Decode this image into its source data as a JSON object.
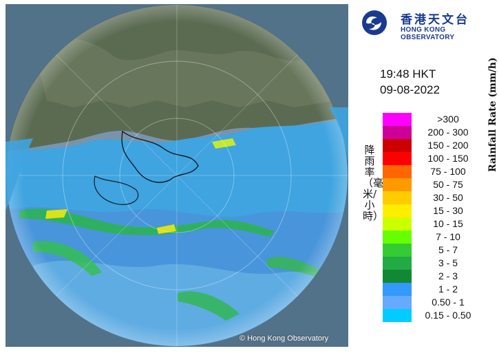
{
  "header": {
    "logo_cn": "香港天文台",
    "logo_en": "HONG KONG OBSERVATORY",
    "logo_icon": "hko-logo-icon"
  },
  "timestamp": {
    "time": "19:48 HKT",
    "date": "09-08-2022"
  },
  "legend": {
    "title_cn": "降雨率（毫米/小時）",
    "title_en": "Rainfall Rate (mm/h)",
    "items": [
      {
        "label": ">300",
        "color": "#ff00ff"
      },
      {
        "label": "200 - 300",
        "color": "#cc0099"
      },
      {
        "label": "150 - 200",
        "color": "#cc0000"
      },
      {
        "label": "100 - 150",
        "color": "#ff0000"
      },
      {
        "label": "75 - 100",
        "color": "#ff6600"
      },
      {
        "label": "50 - 75",
        "color": "#ff9900"
      },
      {
        "label": "30 - 50",
        "color": "#ffcc00"
      },
      {
        "label": "15 - 30",
        "color": "#ffee00"
      },
      {
        "label": "10 - 15",
        "color": "#ccff00"
      },
      {
        "label": "7 - 10",
        "color": "#66ff00"
      },
      {
        "label": "5 - 7",
        "color": "#33cc33"
      },
      {
        "label": "3 - 5",
        "color": "#22aa44"
      },
      {
        "label": "2 - 3",
        "color": "#118833"
      },
      {
        "label": "1 - 2",
        "color": "#3399ff"
      },
      {
        "label": "0.50 - 1",
        "color": "#66aaff"
      },
      {
        "label": "0.15 - 0.50",
        "color": "#00ccff"
      }
    ]
  },
  "map": {
    "copyright": "© Hong Kong Observatory",
    "land_color": "#5a6b4e",
    "sea_color": "#6f8fa8"
  }
}
